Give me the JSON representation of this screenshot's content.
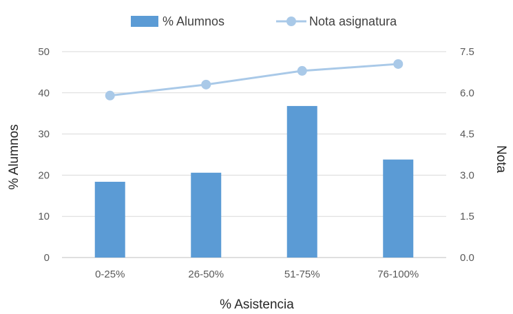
{
  "chart_data": {
    "type": "bar+line",
    "categories": [
      "0-25%",
      "26-50%",
      "51-75%",
      "76-100%"
    ],
    "xlabel": "% Asistencia",
    "ylabel_left": "% Alumnos",
    "ylabel_right": "Nota",
    "y_left_ticks": [
      "0",
      "10",
      "20",
      "30",
      "40",
      "50"
    ],
    "y_right_ticks": [
      "0.0",
      "1.5",
      "3.0",
      "4.5",
      "6.0",
      "7.5"
    ],
    "ylim_left": [
      0,
      50
    ],
    "ylim_right": [
      0,
      7.5
    ],
    "grid": true,
    "legend_position": "top",
    "series": [
      {
        "name": "% Alumnos",
        "type": "bar",
        "axis": "left",
        "color": "#5B9BD5",
        "values": [
          18.4,
          20.6,
          36.8,
          23.8
        ]
      },
      {
        "name": "Nota asignatura",
        "type": "line",
        "axis": "right",
        "color": "#A9C9E8",
        "values": [
          5.9,
          6.3,
          6.8,
          7.05
        ]
      }
    ]
  }
}
